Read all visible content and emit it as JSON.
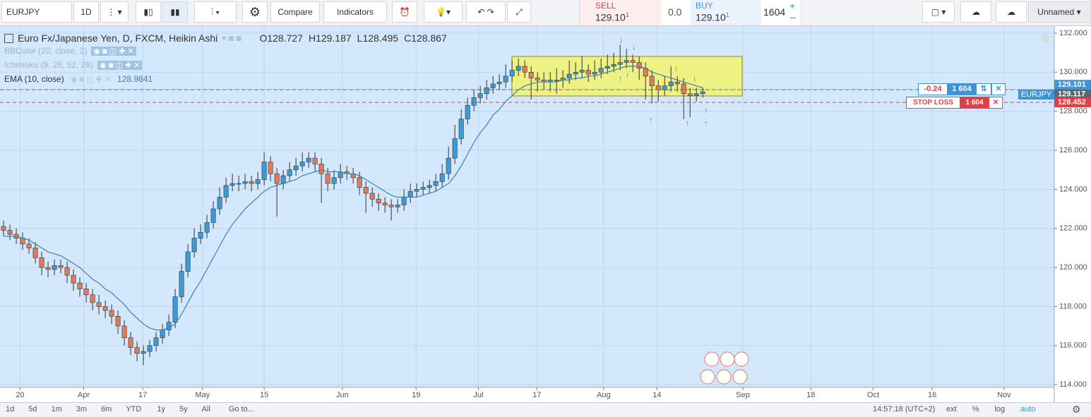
{
  "toolbar": {
    "symbol": "EURJPY",
    "interval": "1D",
    "compare": "Compare",
    "indicators": "Indicators",
    "sell_label": "SELL",
    "sell_price": "129.10",
    "sell_sup": "1",
    "spread": "0.0",
    "buy_label": "BUY",
    "buy_price": "129.10",
    "buy_sup": "1",
    "quantity": "1604",
    "layout_name": "Unnamed"
  },
  "legend": {
    "title": "Euro Fx/Japanese Yen, D, FXCM, Heikin Ashi",
    "ohlc": [
      {
        "label": "O",
        "value": "128.727"
      },
      {
        "label": "H",
        "value": "129.187"
      },
      {
        "label": "L",
        "value": "128.495"
      },
      {
        "label": "C",
        "value": "128.867"
      }
    ],
    "indicators": [
      {
        "name": "BBColor (20, close, 2)"
      },
      {
        "name": "Ichimoku (9, 26, 52, 26)"
      },
      {
        "name": "EMA (10, close)",
        "value": "128.9841"
      }
    ]
  },
  "position": {
    "pnl": "-0.24",
    "qty": "1 604",
    "stop_label": "STOP LOSS",
    "stop_qty": "1 604",
    "symbol_tag": "EURJPY"
  },
  "chart_data": {
    "type": "candlestick",
    "up_color": "#3d9ad9",
    "down_color": "#e07b5b",
    "ema_color": "#3f7fb3",
    "grid": true,
    "ylim": [
      113.86,
      132.36
    ],
    "xlim": [
      -0.56,
      165.3
    ],
    "yticks": [
      {
        "value": 132,
        "label": "132.000"
      },
      {
        "value": 130,
        "label": "130.000"
      },
      {
        "value": 128,
        "label": "128.000"
      },
      {
        "value": 126,
        "label": "126.000"
      },
      {
        "value": 124,
        "label": "124.000"
      },
      {
        "value": 122,
        "label": "122.000"
      },
      {
        "value": 120,
        "label": "120.000"
      },
      {
        "value": 118,
        "label": "118.000"
      },
      {
        "value": 116,
        "label": "116.000"
      },
      {
        "value": 114,
        "label": "114.000"
      }
    ],
    "xticks": [
      {
        "value": 2.6,
        "label": "20"
      },
      {
        "value": 12.6,
        "label": "Apr"
      },
      {
        "value": 21.9,
        "label": "17"
      },
      {
        "value": 31.3,
        "label": "May"
      },
      {
        "value": 41,
        "label": "15"
      },
      {
        "value": 53.3,
        "label": "Jun"
      },
      {
        "value": 64.9,
        "label": "19"
      },
      {
        "value": 74.7,
        "label": "Jul"
      },
      {
        "value": 83.9,
        "label": "17"
      },
      {
        "value": 94.4,
        "label": "Aug"
      },
      {
        "value": 102.8,
        "label": "14"
      },
      {
        "value": 116.3,
        "label": "Sep"
      },
      {
        "value": 127,
        "label": "18"
      },
      {
        "value": 136.8,
        "label": "Oct"
      },
      {
        "value": 146.1,
        "label": "16"
      },
      {
        "value": 157.4,
        "label": "Nov"
      }
    ],
    "price_markers": [
      {
        "value": 129.101,
        "color": "#3d94d6"
      },
      {
        "value": 129.117,
        "color": "#5b6770"
      },
      {
        "value": 128.452,
        "color": "#e0404a"
      }
    ],
    "candles": [
      [
        122.1,
        122.4,
        121.6,
        121.9
      ],
      [
        121.9,
        122.2,
        121.4,
        121.7
      ],
      [
        121.7,
        122.0,
        121.2,
        121.5
      ],
      [
        121.5,
        121.8,
        120.9,
        121.2
      ],
      [
        121.2,
        121.5,
        120.7,
        121.0
      ],
      [
        121.0,
        121.3,
        120.2,
        120.5
      ],
      [
        120.5,
        120.8,
        119.6,
        120.0
      ],
      [
        120.0,
        120.3,
        119.5,
        119.9
      ],
      [
        119.9,
        120.4,
        119.6,
        120.1
      ],
      [
        120.1,
        120.4,
        119.7,
        120.0
      ],
      [
        120.0,
        120.3,
        119.2,
        119.6
      ],
      [
        119.6,
        119.9,
        118.8,
        119.2
      ],
      [
        119.2,
        119.5,
        118.5,
        118.9
      ],
      [
        118.9,
        119.2,
        118.2,
        118.6
      ],
      [
        118.6,
        118.9,
        117.8,
        118.2
      ],
      [
        118.2,
        118.6,
        117.6,
        118.0
      ],
      [
        118.0,
        118.3,
        117.4,
        117.8
      ],
      [
        117.8,
        118.1,
        117.1,
        117.5
      ],
      [
        117.5,
        117.8,
        116.6,
        117.0
      ],
      [
        117.0,
        117.3,
        116.0,
        116.4
      ],
      [
        116.4,
        116.7,
        115.5,
        115.9
      ],
      [
        115.9,
        116.2,
        115.2,
        115.6
      ],
      [
        115.6,
        116.0,
        115.0,
        115.7
      ],
      [
        115.7,
        116.3,
        115.4,
        116.0
      ],
      [
        116.0,
        116.7,
        115.7,
        116.4
      ],
      [
        116.4,
        117.1,
        116.1,
        116.8
      ],
      [
        116.8,
        117.6,
        116.5,
        117.2
      ],
      [
        117.2,
        118.9,
        116.9,
        118.5
      ],
      [
        118.5,
        120.2,
        118.2,
        119.8
      ],
      [
        119.8,
        121.2,
        119.5,
        120.8
      ],
      [
        120.8,
        122.0,
        120.5,
        121.5
      ],
      [
        121.5,
        122.2,
        121.2,
        121.8
      ],
      [
        121.8,
        122.7,
        121.5,
        122.3
      ],
      [
        122.3,
        123.4,
        122.0,
        123.0
      ],
      [
        123.0,
        124.1,
        122.7,
        123.6
      ],
      [
        123.6,
        124.6,
        123.3,
        124.2
      ],
      [
        124.2,
        124.8,
        123.9,
        124.3
      ],
      [
        124.3,
        124.7,
        123.9,
        124.3
      ],
      [
        124.3,
        124.8,
        124.0,
        124.4
      ],
      [
        124.4,
        124.7,
        123.9,
        124.3
      ],
      [
        124.3,
        124.9,
        124.0,
        124.5
      ],
      [
        124.5,
        125.9,
        124.2,
        125.4
      ],
      [
        125.4,
        125.7,
        124.4,
        124.8
      ],
      [
        124.8,
        125.1,
        122.6,
        124.3
      ],
      [
        124.3,
        125.0,
        124.0,
        124.7
      ],
      [
        124.7,
        125.4,
        124.4,
        125.0
      ],
      [
        125.0,
        125.6,
        124.7,
        125.2
      ],
      [
        125.2,
        125.9,
        124.9,
        125.4
      ],
      [
        125.4,
        125.9,
        125.1,
        125.6
      ],
      [
        125.6,
        125.9,
        124.9,
        125.3
      ],
      [
        125.3,
        125.6,
        123.3,
        124.8
      ],
      [
        124.8,
        125.1,
        123.9,
        124.3
      ],
      [
        124.3,
        125.0,
        124.0,
        124.6
      ],
      [
        124.6,
        125.3,
        124.3,
        124.9
      ],
      [
        124.9,
        125.2,
        124.5,
        124.8
      ],
      [
        124.8,
        125.1,
        124.3,
        124.6
      ],
      [
        124.6,
        124.9,
        123.7,
        124.1
      ],
      [
        124.1,
        124.4,
        122.8,
        123.8
      ],
      [
        123.8,
        124.1,
        123.1,
        123.5
      ],
      [
        123.5,
        123.8,
        122.9,
        123.3
      ],
      [
        123.3,
        123.6,
        122.8,
        123.2
      ],
      [
        123.2,
        123.5,
        122.4,
        123.1
      ],
      [
        123.1,
        123.5,
        122.8,
        123.2
      ],
      [
        123.2,
        124.0,
        122.9,
        123.6
      ],
      [
        123.6,
        124.3,
        123.3,
        123.9
      ],
      [
        123.9,
        124.3,
        123.6,
        124.0
      ],
      [
        124.0,
        124.4,
        123.7,
        124.1
      ],
      [
        124.1,
        124.5,
        123.8,
        124.2
      ],
      [
        124.2,
        124.8,
        123.9,
        124.4
      ],
      [
        124.4,
        125.3,
        124.1,
        124.8
      ],
      [
        124.8,
        126.2,
        124.5,
        125.6
      ],
      [
        125.6,
        127.3,
        125.3,
        126.6
      ],
      [
        126.6,
        128.1,
        126.3,
        127.6
      ],
      [
        127.6,
        128.7,
        127.3,
        128.3
      ],
      [
        128.3,
        129.1,
        128.0,
        128.7
      ],
      [
        128.7,
        129.3,
        128.4,
        128.9
      ],
      [
        128.9,
        129.6,
        128.6,
        129.2
      ],
      [
        129.2,
        129.8,
        128.9,
        129.4
      ],
      [
        129.4,
        129.9,
        129.1,
        129.5
      ],
      [
        129.5,
        130.4,
        129.2,
        129.8
      ],
      [
        129.8,
        130.6,
        129.5,
        130.1
      ],
      [
        130.1,
        130.7,
        129.8,
        130.3
      ],
      [
        130.3,
        130.6,
        129.7,
        130.0
      ],
      [
        130.0,
        130.3,
        128.6,
        129.7
      ],
      [
        129.7,
        130.0,
        129.0,
        129.6
      ],
      [
        129.6,
        130.0,
        129.1,
        129.5
      ],
      [
        129.5,
        130.0,
        129.0,
        129.6
      ],
      [
        129.6,
        130.2,
        128.9,
        129.6
      ],
      [
        129.6,
        130.1,
        129.2,
        129.7
      ],
      [
        129.7,
        130.6,
        129.4,
        129.9
      ],
      [
        129.9,
        130.5,
        129.6,
        130.0
      ],
      [
        130.0,
        130.8,
        129.7,
        130.1
      ],
      [
        130.1,
        130.4,
        129.5,
        129.9
      ],
      [
        129.9,
        130.6,
        129.6,
        130.0
      ],
      [
        130.0,
        130.7,
        129.7,
        130.2
      ],
      [
        130.2,
        130.9,
        129.9,
        130.3
      ],
      [
        130.3,
        131.0,
        130.0,
        130.4
      ],
      [
        130.4,
        131.4,
        130.1,
        130.5
      ],
      [
        130.5,
        131.2,
        130.2,
        130.6
      ],
      [
        130.6,
        130.9,
        130.0,
        130.5
      ],
      [
        130.5,
        130.8,
        129.6,
        130.2
      ],
      [
        130.2,
        130.5,
        128.6,
        129.8
      ],
      [
        129.8,
        130.1,
        128.4,
        129.3
      ],
      [
        129.3,
        129.6,
        128.5,
        129.1
      ],
      [
        129.1,
        129.8,
        128.8,
        129.3
      ],
      [
        129.3,
        130.3,
        129.0,
        129.5
      ],
      [
        129.5,
        129.8,
        129.0,
        129.4
      ],
      [
        129.4,
        129.7,
        127.6,
        128.9
      ],
      [
        128.9,
        129.2,
        127.7,
        128.8
      ],
      [
        128.8,
        129.2,
        128.5,
        128.9
      ],
      [
        128.9,
        129.2,
        128.7,
        129.0
      ]
    ],
    "ema": [
      121.6,
      121.6,
      121.6,
      121.5,
      121.4,
      121.2,
      121.0,
      120.8,
      120.7,
      120.6,
      120.4,
      120.2,
      120.0,
      119.7,
      119.4,
      119.2,
      118.9,
      118.7,
      118.4,
      118.1,
      117.7,
      117.4,
      117.1,
      116.9,
      116.8,
      116.8,
      116.9,
      117.1,
      117.6,
      118.2,
      118.8,
      119.3,
      119.9,
      120.5,
      121.1,
      121.7,
      122.2,
      122.6,
      123.0,
      123.3,
      123.6,
      123.9,
      124.1,
      124.2,
      124.3,
      124.4,
      124.5,
      124.7,
      124.8,
      124.9,
      125.0,
      124.9,
      124.9,
      124.9,
      124.8,
      124.8,
      124.7,
      124.5,
      124.3,
      124.1,
      123.9,
      123.7,
      123.6,
      123.6,
      123.6,
      123.6,
      123.7,
      123.8,
      123.9,
      124.1,
      124.3,
      124.7,
      125.2,
      125.8,
      126.4,
      126.9,
      127.3,
      127.8,
      128.1,
      128.5,
      128.8,
      129.1,
      129.3,
      129.4,
      129.5,
      129.5,
      129.5,
      129.5,
      129.6,
      129.6,
      129.7,
      129.7,
      129.8,
      129.8,
      129.9,
      130.0,
      130.1,
      130.2,
      130.3,
      130.3,
      130.3,
      130.2,
      130.0,
      129.9,
      129.8,
      129.7,
      129.6,
      129.5,
      129.4,
      129.3,
      129.2
    ]
  },
  "bottom": {
    "ranges": [
      "1d",
      "5d",
      "1m",
      "3m",
      "6m",
      "YTD",
      "1y",
      "5y",
      "All"
    ],
    "goto": "Go to...",
    "clock": "14:57:18 (UTC+2)",
    "options": [
      "ext",
      "%",
      "log",
      "auto"
    ]
  }
}
